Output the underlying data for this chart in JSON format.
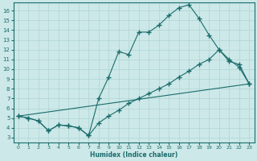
{
  "xlabel": "Humidex (Indice chaleur)",
  "ylabel": "",
  "bg_color": "#cce8e8",
  "grid_color": "#b0d4d4",
  "line_color": "#1a6b6b",
  "xlim": [
    -0.5,
    23.5
  ],
  "ylim": [
    2.5,
    16.8
  ],
  "xticks": [
    0,
    1,
    2,
    3,
    4,
    5,
    6,
    7,
    8,
    9,
    10,
    11,
    12,
    13,
    14,
    15,
    16,
    17,
    18,
    19,
    20,
    21,
    22,
    23
  ],
  "yticks": [
    3,
    4,
    5,
    6,
    7,
    8,
    9,
    10,
    11,
    12,
    13,
    14,
    15,
    16
  ],
  "line1_x": [
    0,
    1,
    2,
    3,
    4,
    5,
    6,
    7,
    8,
    9,
    10,
    11,
    12,
    13,
    14,
    15,
    16,
    17,
    18,
    19,
    20,
    21,
    22,
    23
  ],
  "line1_y": [
    5.2,
    5.0,
    4.7,
    3.7,
    4.3,
    4.2,
    4.0,
    3.2,
    7.0,
    9.2,
    11.8,
    11.5,
    13.8,
    13.8,
    14.5,
    15.5,
    16.3,
    16.6,
    15.2,
    13.5,
    12.0,
    11.0,
    10.2,
    8.5
  ],
  "line2_x": [
    0,
    1,
    2,
    3,
    4,
    5,
    6,
    7,
    8,
    9,
    10,
    11,
    12,
    13,
    14,
    15,
    16,
    17,
    18,
    19,
    20,
    21,
    22,
    23
  ],
  "line2_y": [
    5.2,
    5.0,
    4.7,
    3.7,
    4.3,
    4.2,
    4.0,
    3.2,
    4.5,
    5.2,
    5.8,
    6.5,
    7.0,
    7.5,
    8.0,
    8.5,
    9.2,
    9.8,
    10.5,
    11.0,
    12.0,
    10.8,
    10.5,
    8.5
  ],
  "line3_x": [
    0,
    23
  ],
  "line3_y": [
    5.2,
    8.5
  ],
  "marker": "+",
  "markersize": 4
}
